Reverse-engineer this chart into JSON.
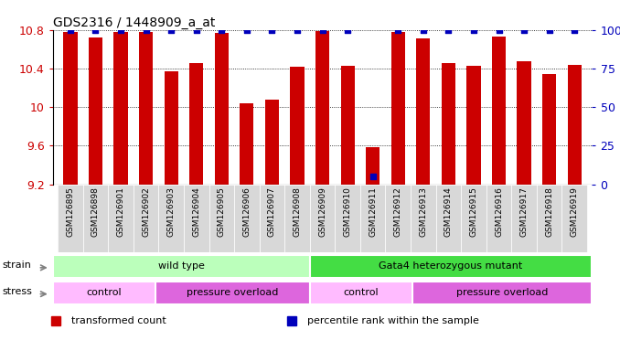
{
  "title": "GDS2316 / 1448909_a_at",
  "samples": [
    "GSM126895",
    "GSM126898",
    "GSM126901",
    "GSM126902",
    "GSM126903",
    "GSM126904",
    "GSM126905",
    "GSM126906",
    "GSM126907",
    "GSM126908",
    "GSM126909",
    "GSM126910",
    "GSM126911",
    "GSM126912",
    "GSM126913",
    "GSM126914",
    "GSM126915",
    "GSM126916",
    "GSM126917",
    "GSM126918",
    "GSM126919"
  ],
  "bar_values": [
    10.78,
    10.72,
    10.78,
    10.78,
    10.37,
    10.46,
    10.77,
    10.04,
    10.08,
    10.42,
    10.79,
    10.43,
    9.58,
    10.78,
    10.71,
    10.46,
    10.43,
    10.73,
    10.47,
    10.34,
    10.44
  ],
  "percentile_values": [
    100,
    100,
    100,
    100,
    100,
    100,
    100,
    100,
    100,
    100,
    100,
    100,
    5,
    100,
    100,
    100,
    100,
    100,
    100,
    100,
    100
  ],
  "bar_color": "#cc0000",
  "dot_color": "#0000bb",
  "ymin": 9.2,
  "ymax": 10.8,
  "yticks": [
    9.2,
    9.6,
    10.0,
    10.4,
    10.8
  ],
  "ytick_labels": [
    "9.2",
    "9.6",
    "10",
    "10.4",
    "10.8"
  ],
  "right_yticks": [
    0,
    25,
    50,
    75,
    100
  ],
  "right_ytick_labels": [
    "0",
    "25",
    "50",
    "75",
    "100%"
  ],
  "strain_groups": [
    {
      "label": "wild type",
      "start": 0,
      "end": 10,
      "color": "#bbffbb"
    },
    {
      "label": "Gata4 heterozygous mutant",
      "start": 10,
      "end": 21,
      "color": "#44dd44"
    }
  ],
  "stress_groups": [
    {
      "label": "control",
      "start": 0,
      "end": 4,
      "color": "#ffbbff"
    },
    {
      "label": "pressure overload",
      "start": 4,
      "end": 10,
      "color": "#dd66dd"
    },
    {
      "label": "control",
      "start": 10,
      "end": 14,
      "color": "#ffbbff"
    },
    {
      "label": "pressure overload",
      "start": 14,
      "end": 21,
      "color": "#dd66dd"
    }
  ],
  "legend_items": [
    {
      "label": "transformed count",
      "color": "#cc0000"
    },
    {
      "label": "percentile rank within the sample",
      "color": "#0000bb"
    }
  ],
  "bar_width": 0.55,
  "plot_bg": "#ffffff",
  "tick_bg": "#d8d8d8"
}
